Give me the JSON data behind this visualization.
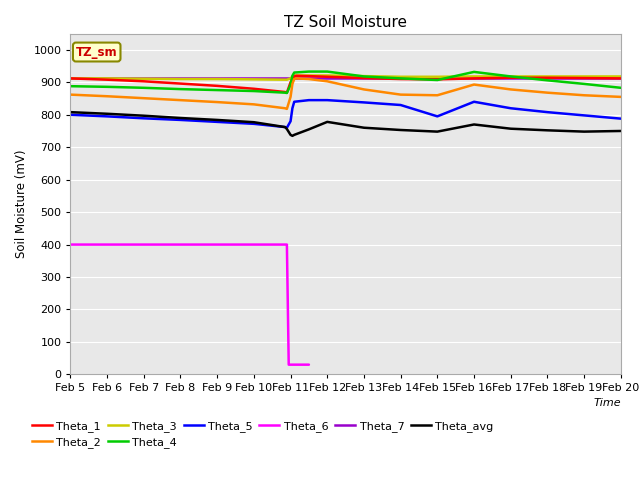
{
  "title": "TZ Soil Moisture",
  "xlabel": "Time",
  "ylabel": "Soil Moisture (mV)",
  "label_box": "TZ_sm",
  "ylim": [
    0,
    1050
  ],
  "yticks": [
    0,
    100,
    200,
    300,
    400,
    500,
    600,
    700,
    800,
    900,
    1000
  ],
  "date_start": 5,
  "date_end": 20,
  "xtick_labels": [
    "Feb 5",
    "Feb 6",
    "Feb 7",
    "Feb 8",
    "Feb 9",
    "Feb 10",
    "Feb 11",
    "Feb 12",
    "Feb 13",
    "Feb 14",
    "Feb 15",
    "Feb 16",
    "Feb 17",
    "Feb 18",
    "Feb 19",
    "Feb 20"
  ],
  "bg_color": "#e8e8e8",
  "series_order": [
    "Theta_7",
    "Theta_3",
    "Theta_1",
    "Theta_4",
    "Theta_2",
    "Theta_5",
    "Theta_avg",
    "Theta_6"
  ],
  "legend_order": [
    "Theta_1",
    "Theta_2",
    "Theta_3",
    "Theta_4",
    "Theta_5",
    "Theta_6",
    "Theta_7",
    "Theta_avg"
  ],
  "series": {
    "Theta_1": {
      "color": "#ff0000",
      "points": [
        [
          5,
          912
        ],
        [
          6,
          908
        ],
        [
          7,
          903
        ],
        [
          8,
          896
        ],
        [
          9,
          889
        ],
        [
          10,
          880
        ],
        [
          10.85,
          870
        ],
        [
          10.9,
          868
        ],
        [
          11.0,
          900
        ],
        [
          11.05,
          910
        ],
        [
          11.1,
          918
        ],
        [
          11.15,
          920
        ],
        [
          11.5,
          919
        ],
        [
          12,
          917
        ],
        [
          13,
          913
        ],
        [
          14,
          910
        ],
        [
          15,
          909
        ],
        [
          16,
          912
        ],
        [
          17,
          914
        ],
        [
          18,
          914
        ],
        [
          19,
          913
        ],
        [
          20,
          912
        ]
      ]
    },
    "Theta_2": {
      "color": "#ff8800",
      "points": [
        [
          5,
          862
        ],
        [
          6,
          857
        ],
        [
          7,
          851
        ],
        [
          8,
          845
        ],
        [
          9,
          839
        ],
        [
          10,
          832
        ],
        [
          10.85,
          820
        ],
        [
          10.9,
          818
        ],
        [
          11.0,
          855
        ],
        [
          11.05,
          895
        ],
        [
          11.1,
          910
        ],
        [
          11.15,
          912
        ],
        [
          11.5,
          910
        ],
        [
          12,
          903
        ],
        [
          13,
          878
        ],
        [
          14,
          862
        ],
        [
          15,
          860
        ],
        [
          16,
          893
        ],
        [
          17,
          878
        ],
        [
          18,
          868
        ],
        [
          19,
          860
        ],
        [
          20,
          855
        ]
      ]
    },
    "Theta_3": {
      "color": "#cccc00",
      "points": [
        [
          5,
          912
        ],
        [
          6,
          912
        ],
        [
          7,
          911
        ],
        [
          8,
          910
        ],
        [
          9,
          910
        ],
        [
          10,
          909
        ],
        [
          10.85,
          908
        ],
        [
          10.9,
          908
        ],
        [
          11.0,
          912
        ],
        [
          11.05,
          918
        ],
        [
          11.1,
          921
        ],
        [
          11.5,
          921
        ],
        [
          12,
          921
        ],
        [
          13,
          919
        ],
        [
          14,
          917
        ],
        [
          15,
          917
        ],
        [
          16,
          918
        ],
        [
          17,
          918
        ],
        [
          18,
          918
        ],
        [
          19,
          918
        ],
        [
          20,
          918
        ]
      ]
    },
    "Theta_4": {
      "color": "#00cc00",
      "points": [
        [
          5,
          888
        ],
        [
          6,
          886
        ],
        [
          7,
          883
        ],
        [
          8,
          879
        ],
        [
          9,
          876
        ],
        [
          10,
          873
        ],
        [
          10.85,
          868
        ],
        [
          10.9,
          867
        ],
        [
          11.0,
          892
        ],
        [
          11.05,
          920
        ],
        [
          11.1,
          930
        ],
        [
          11.5,
          933
        ],
        [
          12,
          933
        ],
        [
          13,
          918
        ],
        [
          14,
          912
        ],
        [
          15,
          907
        ],
        [
          16,
          932
        ],
        [
          17,
          918
        ],
        [
          18,
          906
        ],
        [
          19,
          895
        ],
        [
          20,
          883
        ]
      ]
    },
    "Theta_5": {
      "color": "#0000ff",
      "points": [
        [
          5,
          800
        ],
        [
          6,
          795
        ],
        [
          7,
          789
        ],
        [
          8,
          784
        ],
        [
          9,
          778
        ],
        [
          10,
          772
        ],
        [
          10.85,
          762
        ],
        [
          10.9,
          760
        ],
        [
          11.0,
          780
        ],
        [
          11.05,
          820
        ],
        [
          11.1,
          840
        ],
        [
          11.5,
          845
        ],
        [
          12,
          845
        ],
        [
          13,
          838
        ],
        [
          14,
          830
        ],
        [
          15,
          795
        ],
        [
          16,
          840
        ],
        [
          17,
          820
        ],
        [
          18,
          808
        ],
        [
          19,
          798
        ],
        [
          20,
          788
        ]
      ]
    },
    "Theta_6": {
      "color": "#ff00ff",
      "points": [
        [
          5,
          400
        ],
        [
          10.85,
          400
        ],
        [
          10.9,
          400
        ],
        [
          10.95,
          30
        ],
        [
          11.5,
          30
        ]
      ]
    },
    "Theta_7": {
      "color": "#9900cc",
      "points": [
        [
          5,
          914
        ],
        [
          6,
          914
        ],
        [
          7,
          914
        ],
        [
          8,
          914
        ],
        [
          9,
          914
        ],
        [
          10,
          914
        ],
        [
          11,
          914
        ],
        [
          12,
          914
        ],
        [
          13,
          914
        ],
        [
          14,
          914
        ],
        [
          15,
          914
        ],
        [
          16,
          914
        ],
        [
          17,
          914
        ],
        [
          18,
          914
        ],
        [
          19,
          914
        ],
        [
          20,
          914
        ]
      ]
    },
    "Theta_avg": {
      "color": "#000000",
      "points": [
        [
          5,
          808
        ],
        [
          6,
          803
        ],
        [
          7,
          797
        ],
        [
          8,
          790
        ],
        [
          9,
          784
        ],
        [
          10,
          777
        ],
        [
          10.85,
          762
        ],
        [
          10.9,
          756
        ],
        [
          11.0,
          738
        ],
        [
          11.05,
          735
        ],
        [
          11.1,
          738
        ],
        [
          11.5,
          755
        ],
        [
          12,
          778
        ],
        [
          13,
          760
        ],
        [
          14,
          753
        ],
        [
          15,
          748
        ],
        [
          16,
          770
        ],
        [
          17,
          757
        ],
        [
          18,
          752
        ],
        [
          19,
          748
        ],
        [
          20,
          750
        ]
      ]
    }
  }
}
